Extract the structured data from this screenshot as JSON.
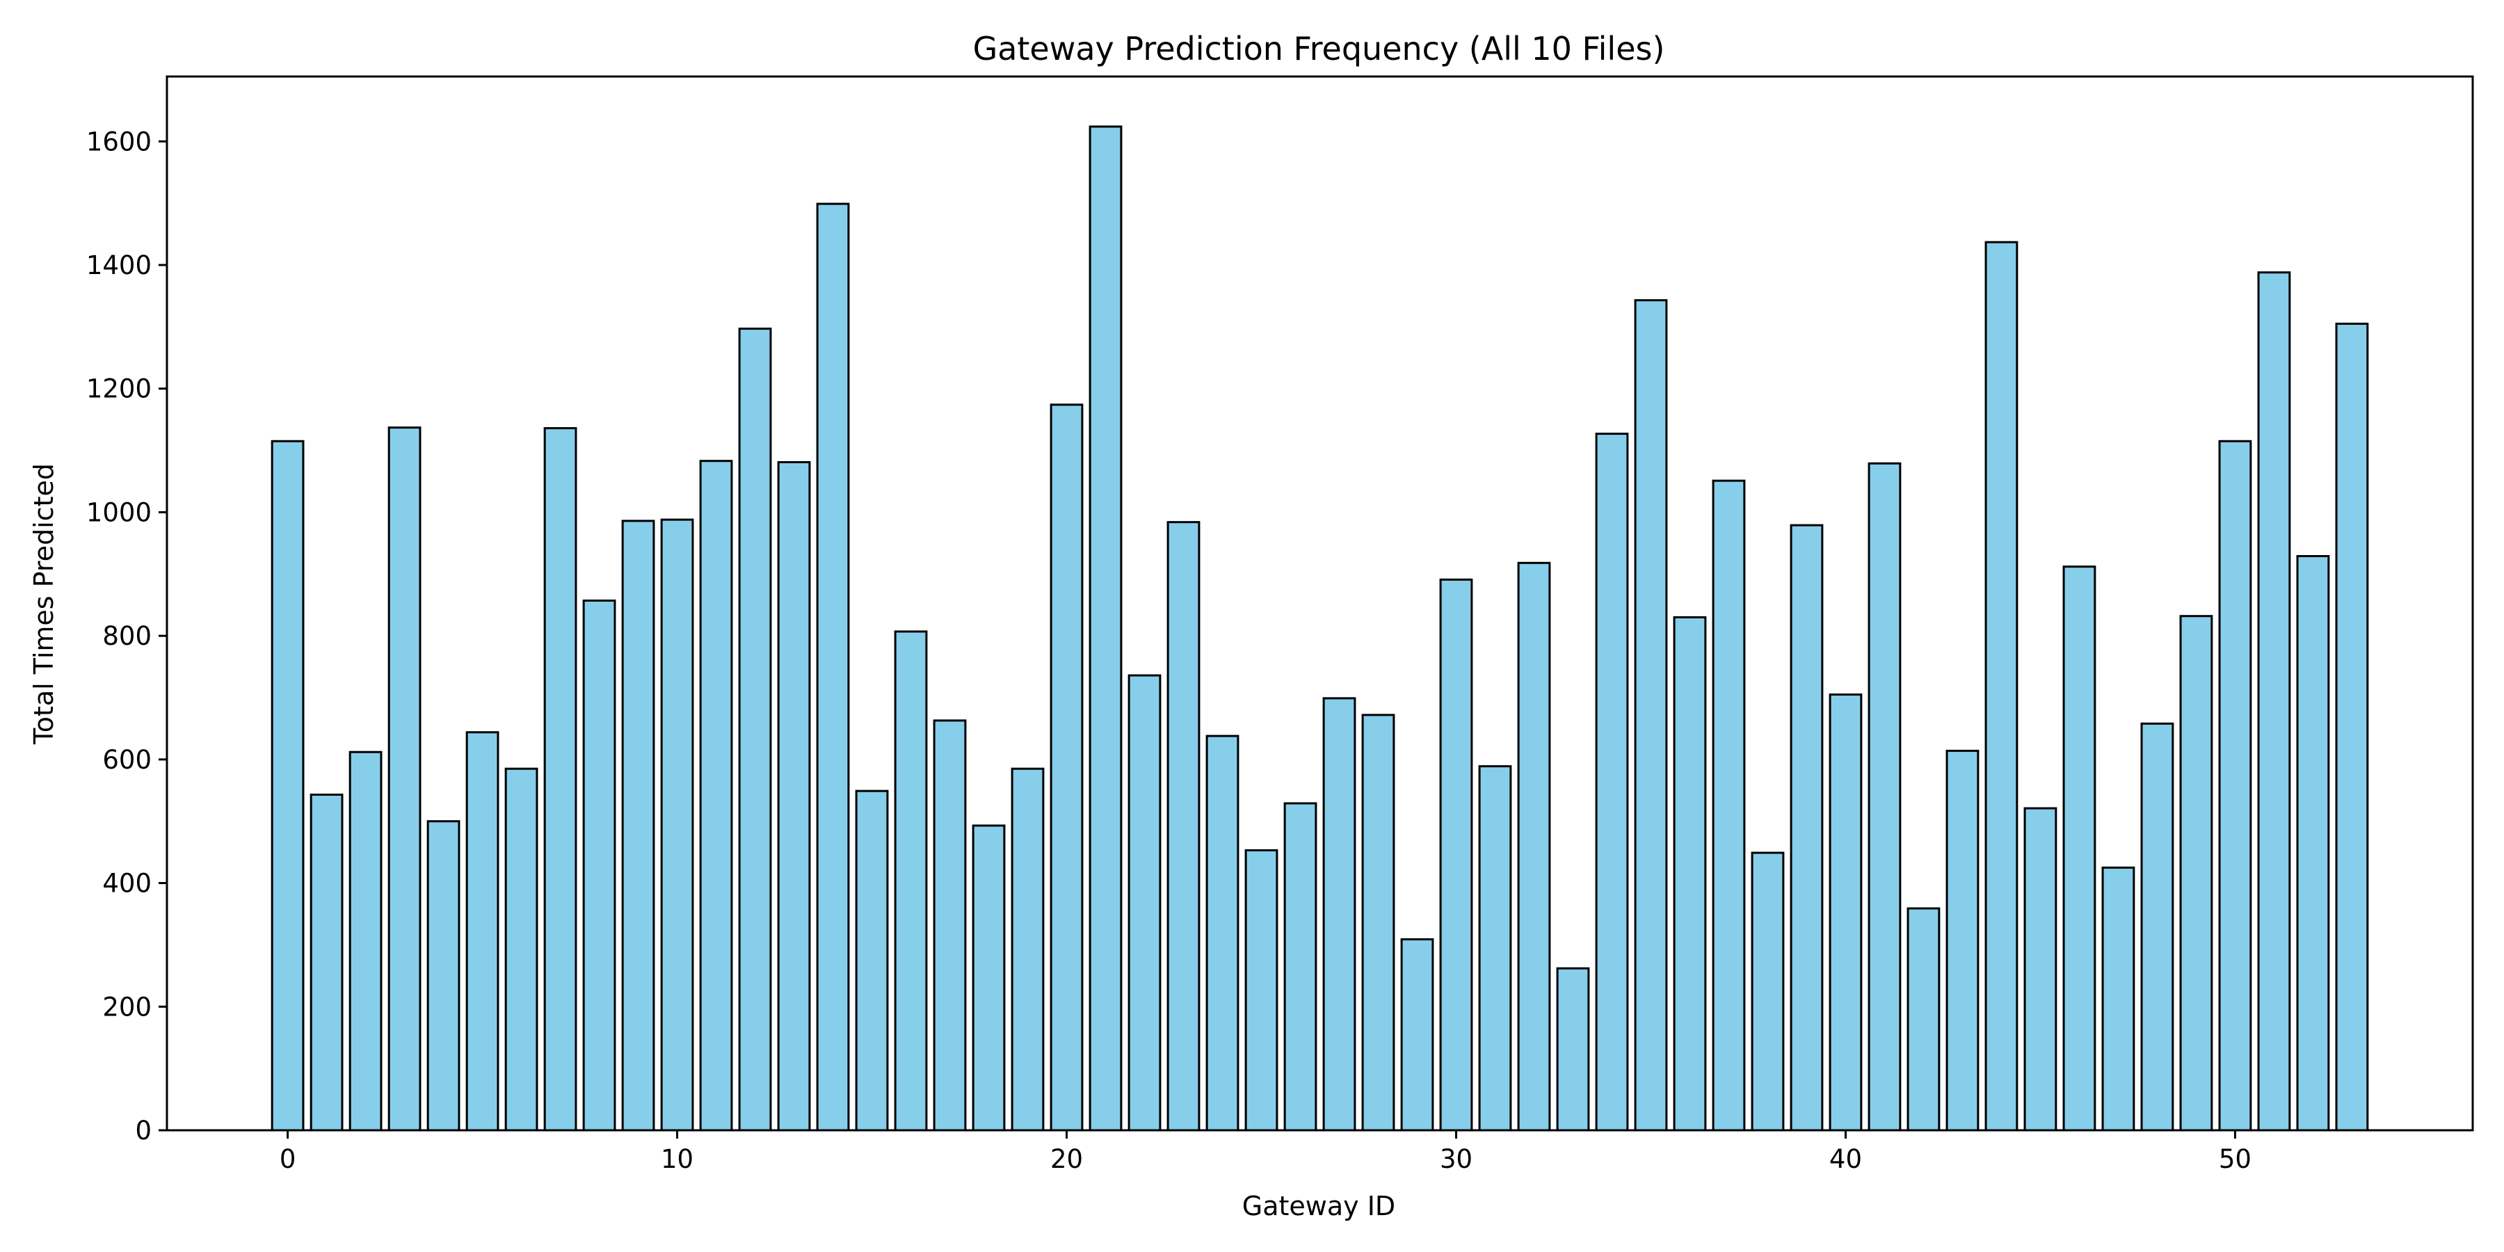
{
  "chart_data": {
    "type": "bar",
    "title": "Gateway Prediction Frequency (All 10 Files)",
    "xlabel": "Gateway ID",
    "ylabel": "Total Times Predicted",
    "x": [
      0,
      1,
      2,
      3,
      4,
      5,
      6,
      7,
      8,
      9,
      10,
      11,
      12,
      13,
      14,
      15,
      16,
      17,
      18,
      19,
      20,
      21,
      22,
      23,
      24,
      25,
      26,
      27,
      28,
      29,
      30,
      31,
      32,
      33,
      34,
      35,
      36,
      37,
      38,
      39,
      40,
      41,
      42,
      43,
      44,
      45,
      46,
      47,
      48,
      49,
      50,
      51,
      52,
      53
    ],
    "values": [
      1115,
      543,
      612,
      1137,
      500,
      644,
      585,
      1136,
      857,
      986,
      988,
      1083,
      1297,
      1081,
      1499,
      549,
      807,
      663,
      493,
      585,
      1174,
      1624,
      736,
      984,
      638,
      453,
      529,
      699,
      672,
      309,
      891,
      589,
      918,
      262,
      1127,
      1343,
      830,
      1051,
      449,
      979,
      705,
      1079,
      359,
      614,
      1437,
      521,
      912,
      425,
      658,
      832,
      1115,
      1388,
      929,
      1305
    ],
    "xlim": [
      -3.1,
      56.1
    ],
    "ylim": [
      0,
      1705
    ],
    "xticks": [
      0,
      10,
      20,
      30,
      40,
      50
    ],
    "yticks": [
      0,
      200,
      400,
      600,
      800,
      1000,
      1200,
      1400,
      1600
    ],
    "bar_width": 0.8,
    "grid": false,
    "legend": false,
    "colors": {
      "bar_fill": "#87CEEB",
      "bar_edge": "#000000"
    }
  }
}
